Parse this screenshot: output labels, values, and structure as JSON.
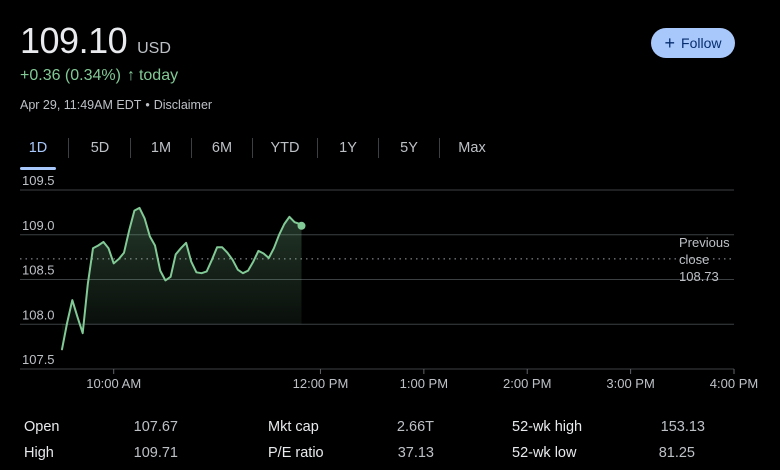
{
  "quote": {
    "price": "109.10",
    "currency": "USD",
    "change": "+0.36 (0.34%)",
    "change_period": "today",
    "timestamp": "Apr 29, 11:49AM EDT",
    "disclaimer": "Disclaimer",
    "follow_label": "Follow"
  },
  "tabs": [
    "1D",
    "5D",
    "1M",
    "6M",
    "YTD",
    "1Y",
    "5Y",
    "Max"
  ],
  "active_tab": "1D",
  "chart_data": {
    "type": "line",
    "title": "",
    "xlabel": "",
    "ylabel": "",
    "x_ticks": [
      "10:00 AM",
      "12:00 PM",
      "1:00 PM",
      "2:00 PM",
      "3:00 PM",
      "4:00 PM"
    ],
    "x_tick_minutes": [
      600,
      720,
      780,
      840,
      900,
      960
    ],
    "x_range": [
      570,
      960
    ],
    "y_ticks": [
      "107.5",
      "108.0",
      "108.5",
      "109.0",
      "109.5"
    ],
    "ylim": [
      107.5,
      109.5
    ],
    "previous_close": 108.73,
    "previous_close_label": [
      "Previous",
      "close",
      "108.73"
    ],
    "series": [
      {
        "name": "Price",
        "color": "#81c995",
        "x": [
          570,
          573,
          576,
          579,
          582,
          585,
          588,
          591,
          594,
          597,
          600,
          603,
          606,
          609,
          612,
          615,
          618,
          621,
          624,
          627,
          630,
          633,
          636,
          639,
          642,
          645,
          648,
          651,
          654,
          657,
          660,
          663,
          666,
          669,
          672,
          675,
          678,
          681,
          684,
          687,
          690,
          693,
          696,
          699,
          702,
          705,
          708,
          709
        ],
        "values": [
          107.72,
          108.02,
          108.27,
          108.08,
          107.9,
          108.45,
          108.85,
          108.88,
          108.92,
          108.85,
          108.68,
          108.73,
          108.8,
          109.05,
          109.27,
          109.3,
          109.18,
          108.98,
          108.88,
          108.6,
          108.49,
          108.53,
          108.78,
          108.85,
          108.91,
          108.7,
          108.58,
          108.57,
          108.59,
          108.72,
          108.86,
          108.86,
          108.8,
          108.72,
          108.61,
          108.57,
          108.6,
          108.7,
          108.82,
          108.79,
          108.74,
          108.85,
          109.0,
          109.12,
          109.2,
          109.14,
          109.12,
          109.1
        ]
      }
    ]
  },
  "stats": {
    "col1": [
      {
        "label": "Open",
        "value": "107.67"
      },
      {
        "label": "High",
        "value": "109.71"
      }
    ],
    "col2": [
      {
        "label": "Mkt cap",
        "value": "2.66T"
      },
      {
        "label": "P/E ratio",
        "value": "37.13"
      }
    ],
    "col3": [
      {
        "label": "52-wk high",
        "value": "153.13"
      },
      {
        "label": "52-wk low",
        "value": "81.25"
      }
    ]
  },
  "colors": {
    "background": "#000000",
    "up": "#81c995",
    "accent": "#a8c7fa",
    "grid": "#3c4043",
    "label": "#bdc1c6"
  }
}
